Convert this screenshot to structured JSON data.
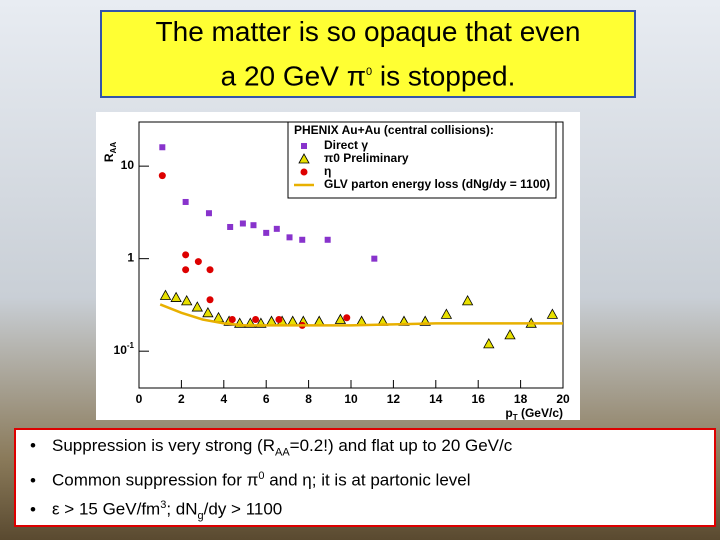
{
  "slide": {
    "title": [
      "The matter is so opaque that even",
      "a 20 GeV π",
      "0",
      " is stopped."
    ],
    "bullets": [
      [
        "Suppression is very strong (R",
        "AA",
        "=0.2!) and flat up to 20 GeV/c"
      ],
      [
        "Common suppression for π",
        "0",
        " and η; it is at partonic level"
      ],
      [
        "ε > 15 GeV/fm",
        "3",
        "; dN",
        "g",
        "/dy > 1100"
      ]
    ]
  },
  "chart_data": {
    "type": "scatter",
    "x_label": [
      "p",
      "T",
      " (GeV/c)"
    ],
    "y_label": [
      "R",
      "AA"
    ],
    "legend_title": "PHENIX Au+Au (central collisions):",
    "xlim": [
      0,
      20
    ],
    "xticks": [
      0,
      2,
      4,
      6,
      8,
      10,
      12,
      14,
      16,
      18,
      20
    ],
    "ylim": [
      0.04,
      30
    ],
    "ylog": true,
    "yticks": [
      {
        "value": 0.1,
        "label": "10",
        "exponent": "-1"
      },
      1,
      10
    ],
    "series": [
      {
        "name": "Direct γ",
        "color": "#8833cc",
        "marker": "square",
        "x": [
          1.1,
          2.2,
          3.3,
          4.3,
          4.9,
          5.4,
          6.0,
          6.5,
          7.1,
          7.7,
          8.9,
          11.1
        ],
        "values": [
          16,
          4.1,
          3.1,
          2.2,
          2.4,
          2.3,
          1.9,
          2.1,
          1.7,
          1.6,
          1.6,
          1.0
        ]
      },
      {
        "name": "π0 Preliminary",
        "color": "#e8e000",
        "marker": "triangle",
        "x": [
          1.25,
          1.75,
          2.25,
          2.75,
          3.25,
          3.75,
          4.25,
          4.75,
          5.25,
          5.75,
          6.25,
          6.75,
          7.25,
          7.75,
          8.5,
          9.5,
          10.5,
          11.5,
          12.5,
          13.5,
          14.5,
          15.5,
          16.5,
          17.5,
          18.5,
          19.5
        ],
        "values": [
          0.4,
          0.38,
          0.35,
          0.3,
          0.26,
          0.23,
          0.21,
          0.2,
          0.2,
          0.2,
          0.21,
          0.21,
          0.21,
          0.21,
          0.21,
          0.22,
          0.21,
          0.21,
          0.21,
          0.21,
          0.25,
          0.35,
          0.12,
          0.15,
          0.2,
          0.25
        ]
      },
      {
        "name": "η",
        "color": "#dd0000",
        "marker": "circle",
        "x": [
          1.1,
          2.2,
          2.2,
          2.8,
          3.35,
          3.35,
          4.4,
          5.5,
          6.6,
          7.7,
          9.8
        ],
        "values": [
          7.9,
          1.1,
          0.76,
          0.93,
          0.76,
          0.36,
          0.22,
          0.22,
          0.22,
          0.19,
          0.23
        ]
      },
      {
        "name": "GLV parton energy loss (dNg/dy = 1100)",
        "color": "#e8b000",
        "marker": "line",
        "x": [
          1,
          2,
          3,
          4,
          5,
          6,
          8,
          10,
          12,
          14,
          16,
          18,
          20
        ],
        "values": [
          0.32,
          0.26,
          0.22,
          0.2,
          0.19,
          0.19,
          0.19,
          0.19,
          0.195,
          0.2,
          0.2,
          0.2,
          0.2
        ]
      }
    ]
  }
}
